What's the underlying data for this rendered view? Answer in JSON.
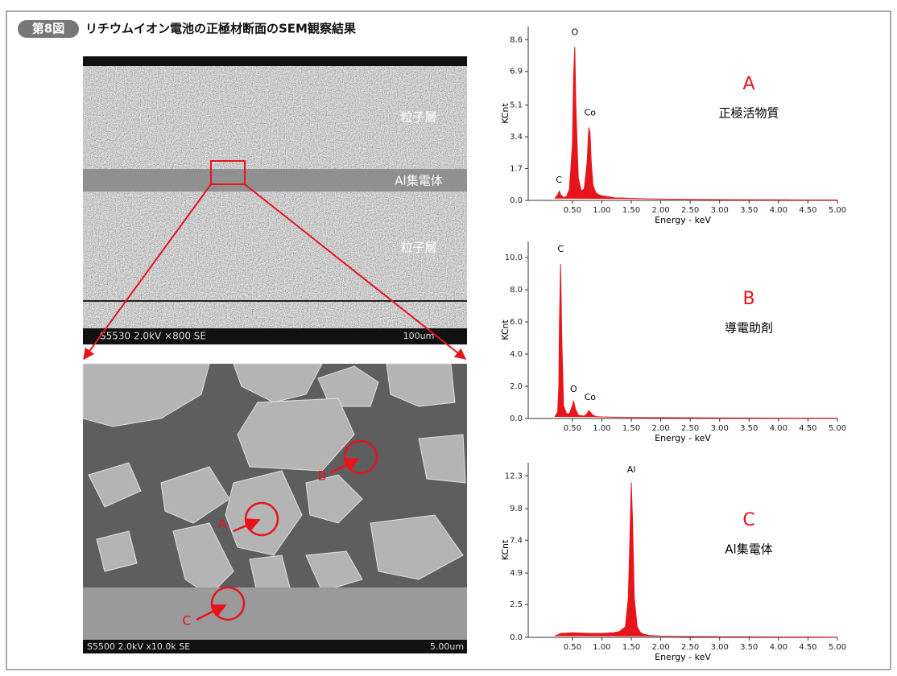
{
  "figure": {
    "badge": "第8図",
    "title": "リチウムイオン電池の正極材断面のSEM観察結果",
    "top_image": {
      "labels": [
        "粒子層",
        "Al集電体",
        "粒子層"
      ],
      "info": "S5530 2.0kV ×800 SE",
      "scale": "100um"
    },
    "bottom_image": {
      "labels": [
        "A",
        "B",
        "C"
      ],
      "info": "S5500 2.0kV x10.0k SE",
      "scale": "5.00um"
    }
  },
  "chart_data": [
    {
      "type": "line",
      "label": "A",
      "subtitle": "正極活物質",
      "x_label": "Energy - keV",
      "y_label": "KCnt",
      "color": "#e8141c",
      "annotations": [
        "C",
        "O",
        "Co"
      ],
      "x": [
        0.2,
        0.25,
        0.28,
        0.3,
        0.35,
        0.4,
        0.45,
        0.5,
        0.52,
        0.54,
        0.56,
        0.6,
        0.65,
        0.7,
        0.75,
        0.78,
        0.8,
        0.82,
        0.85,
        0.9,
        0.95,
        1.0,
        1.1,
        1.2,
        1.4,
        1.6,
        1.8,
        2.0,
        2.5,
        3.0,
        3.5,
        4.0,
        4.5,
        5.0
      ],
      "values": [
        0.1,
        0.3,
        0.5,
        0.3,
        0.15,
        0.2,
        0.6,
        3.0,
        6.5,
        8.2,
        5.0,
        1.2,
        0.5,
        0.6,
        2.0,
        3.9,
        3.6,
        2.0,
        0.8,
        0.4,
        0.3,
        0.25,
        0.2,
        0.15,
        0.12,
        0.1,
        0.08,
        0.07,
        0.05,
        0.04,
        0.03,
        0.03,
        0.02,
        0.02
      ],
      "xlim": [
        -0.25,
        5.0
      ],
      "ylim": [
        0,
        9.3
      ],
      "xticks": [
        {
          "value": 0.5,
          "label": "0.50"
        },
        {
          "value": 1,
          "label": "1.00"
        },
        {
          "value": 1.5,
          "label": "1.50"
        },
        {
          "value": 2,
          "label": "2.00"
        },
        {
          "value": 2.5,
          "label": "2.50"
        },
        {
          "value": 3,
          "label": "3.00"
        },
        {
          "value": 3.5,
          "label": "3.50"
        },
        {
          "value": 4,
          "label": "4.00"
        },
        {
          "value": 4.5,
          "label": "4.50"
        },
        {
          "value": 5,
          "label": "5.00"
        }
      ],
      "yticks": [
        {
          "value": 0,
          "label": "0.0"
        },
        1.7,
        3.4,
        5.1,
        6.9,
        8.6
      ]
    },
    {
      "type": "line",
      "label": "B",
      "subtitle": "導電助剤",
      "x_label": "Energy - keV",
      "y_label": "KCnt",
      "color": "#e8141c",
      "annotations": [
        "C",
        "O",
        "Co"
      ],
      "x": [
        0.2,
        0.25,
        0.27,
        0.28,
        0.3,
        0.32,
        0.35,
        0.4,
        0.45,
        0.5,
        0.52,
        0.55,
        0.6,
        0.7,
        0.75,
        0.78,
        0.8,
        0.85,
        0.9,
        1.0,
        1.2,
        1.5,
        2.0,
        2.5,
        3.0,
        3.5,
        4.0,
        4.5,
        5.0
      ],
      "values": [
        0.1,
        0.4,
        2.0,
        6.0,
        9.6,
        5.0,
        0.8,
        0.3,
        0.3,
        0.8,
        1.1,
        0.6,
        0.2,
        0.15,
        0.3,
        0.5,
        0.4,
        0.2,
        0.12,
        0.1,
        0.08,
        0.06,
        0.05,
        0.04,
        0.03,
        0.03,
        0.02,
        0.02,
        0.02
      ],
      "xlim": [
        -0.25,
        5.0
      ],
      "ylim": [
        0,
        11.0
      ],
      "xticks": [
        {
          "value": 0.5,
          "label": "0.50"
        },
        {
          "value": 1,
          "label": "1.00"
        },
        {
          "value": 1.5,
          "label": "1.50"
        },
        {
          "value": 2,
          "label": "2.00"
        },
        {
          "value": 2.5,
          "label": "2.50"
        },
        {
          "value": 3,
          "label": "3.00"
        },
        {
          "value": 3.5,
          "label": "3.50"
        },
        {
          "value": 4,
          "label": "4.00"
        },
        {
          "value": 4.5,
          "label": "4.50"
        },
        {
          "value": 5,
          "label": "5.00"
        }
      ],
      "yticks": [
        {
          "value": 0,
          "label": "0.0"
        },
        {
          "value": 2,
          "label": "2.0"
        },
        {
          "value": 4,
          "label": "4.0"
        },
        {
          "value": 6,
          "label": "6.0"
        },
        {
          "value": 8,
          "label": "8.0"
        },
        {
          "value": 10,
          "label": "10.0"
        }
      ]
    },
    {
      "type": "line",
      "label": "C",
      "subtitle": "Al集電体",
      "x_label": "Energy - keV",
      "y_label": "KCnt",
      "color": "#e8141c",
      "annotations": [
        "Al"
      ],
      "x": [
        0.2,
        0.3,
        0.5,
        0.8,
        1.0,
        1.2,
        1.3,
        1.4,
        1.45,
        1.48,
        1.5,
        1.52,
        1.55,
        1.6,
        1.65,
        1.7,
        1.8,
        2.0,
        2.5,
        3.0,
        3.5,
        4.0,
        4.5,
        5.0
      ],
      "values": [
        0.1,
        0.3,
        0.35,
        0.3,
        0.3,
        0.35,
        0.45,
        0.8,
        3.0,
        8.0,
        11.8,
        9.0,
        3.0,
        0.8,
        0.4,
        0.25,
        0.15,
        0.1,
        0.06,
        0.05,
        0.04,
        0.03,
        0.03,
        0.02
      ],
      "xlim": [
        -0.25,
        5.0
      ],
      "ylim": [
        0,
        13.3
      ],
      "xticks": [
        {
          "value": 0.5,
          "label": "0.50"
        },
        {
          "value": 1,
          "label": "1.00"
        },
        {
          "value": 1.5,
          "label": "1.50"
        },
        {
          "value": 2,
          "label": "2.00"
        },
        {
          "value": 2.5,
          "label": "2.50"
        },
        {
          "value": 3,
          "label": "3.00"
        },
        {
          "value": 3.5,
          "label": "3.50"
        },
        {
          "value": 4,
          "label": "4.00"
        },
        {
          "value": 4.5,
          "label": "4.50"
        },
        {
          "value": 5,
          "label": "5.00"
        }
      ],
      "yticks": [
        {
          "value": 0,
          "label": "0.0"
        },
        2.5,
        4.9,
        7.4,
        9.8,
        12.3
      ]
    }
  ]
}
